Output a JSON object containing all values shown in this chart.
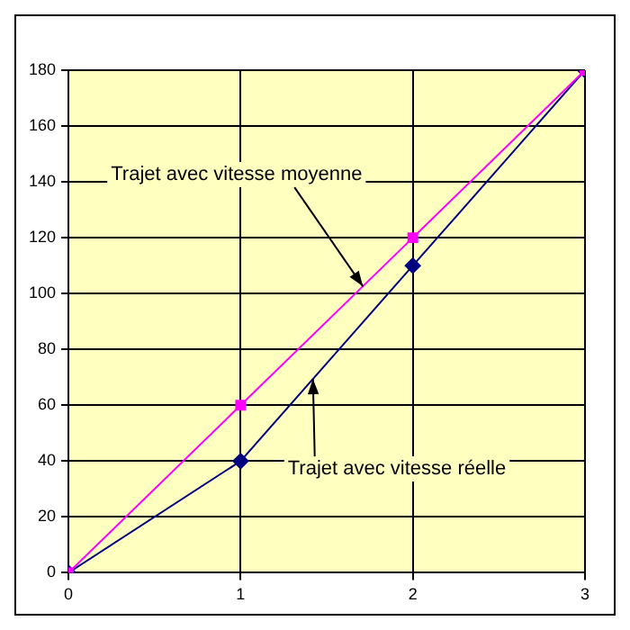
{
  "chart_data": {
    "type": "line",
    "x": [
      0,
      1,
      2,
      3
    ],
    "series": [
      {
        "color": "#ff00ff",
        "values": [
          0,
          60,
          120,
          180
        ],
        "marker": "square"
      },
      {
        "color": "#000080",
        "values": [
          0,
          40,
          110,
          180
        ],
        "marker": "diamond"
      }
    ],
    "xlim": [
      0,
      3
    ],
    "xticks": [
      0,
      1,
      2,
      3
    ],
    "ylim": [
      0,
      180
    ],
    "yticks": [
      0,
      20,
      40,
      60,
      80,
      100,
      120,
      140,
      160,
      180
    ],
    "grid": true,
    "legend": false,
    "line_style": "solid",
    "annotations": [
      {
        "text": "Trajet avec vitesse moyenne",
        "x": 1.71,
        "y": 102.6
      },
      {
        "text": "Trajet avec vitesse réelle",
        "x": 1.42,
        "y": 69.4
      }
    ]
  }
}
